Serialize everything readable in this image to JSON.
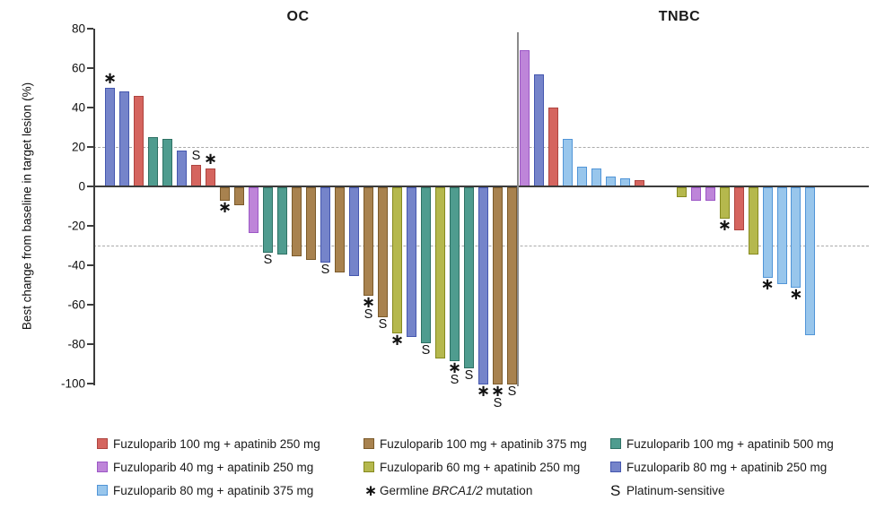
{
  "y_axis": {
    "label": "Best change from baseline in target lesion (%)",
    "ticks": [
      80,
      60,
      40,
      20,
      0,
      -20,
      -40,
      -60,
      -80,
      -100
    ],
    "reference_lines": [
      20,
      -30
    ]
  },
  "groups": {
    "fuzu100_apa250": {
      "label": "Fuzuloparib 100 mg + apatinib 250 mg",
      "fill": "#D5655F",
      "border": "#AE443F"
    },
    "fuzu100_apa375": {
      "label": "Fuzuloparib 100 mg + apatinib 375 mg",
      "fill": "#A8824F",
      "border": "#7B5A2A"
    },
    "fuzu100_apa500": {
      "label": "Fuzuloparib 100 mg + apatinib 500 mg",
      "fill": "#4F9C8F",
      "border": "#2E7164"
    },
    "fuzu40_apa250": {
      "label": "Fuzuloparib 40 mg + apatinib 250 mg",
      "fill": "#BE85D9",
      "border": "#9C57C6"
    },
    "fuzu60_apa250": {
      "label": "Fuzuloparib 60 mg + apatinib 250 mg",
      "fill": "#B5B84D",
      "border": "#868A1F"
    },
    "fuzu80_apa250": {
      "label": "Fuzuloparib 80 mg + apatinib 250 mg",
      "fill": "#7584CA",
      "border": "#4557AF"
    },
    "fuzu80_apa375": {
      "label": "Fuzuloparib 80 mg + apatinib 375 mg",
      "fill": "#98C6EC",
      "border": "#5195D7"
    }
  },
  "chart_data": {
    "type": "bar",
    "ylabel": "Best change from baseline in target lesion (%)",
    "ylim": [
      -100,
      80
    ],
    "reference_lines": [
      20,
      -30
    ],
    "panels": [
      {
        "name": "OC",
        "bars": [
          {
            "value": 50,
            "group": "fuzu80_apa250",
            "marks": [
              "*"
            ]
          },
          {
            "value": 48,
            "group": "fuzu80_apa250",
            "marks": []
          },
          {
            "value": 46,
            "group": "fuzu100_apa250",
            "marks": []
          },
          {
            "value": 25,
            "group": "fuzu100_apa500",
            "marks": []
          },
          {
            "value": 24,
            "group": "fuzu100_apa500",
            "marks": []
          },
          {
            "value": 18,
            "group": "fuzu80_apa250",
            "marks": []
          },
          {
            "value": 11,
            "group": "fuzu100_apa250",
            "marks": [
              "S"
            ]
          },
          {
            "value": 9,
            "group": "fuzu100_apa250",
            "marks": [
              "*"
            ]
          },
          {
            "value": -7,
            "group": "fuzu100_apa375",
            "marks": [
              "*"
            ]
          },
          {
            "value": -9,
            "group": "fuzu100_apa375",
            "marks": []
          },
          {
            "value": -23,
            "group": "fuzu40_apa250",
            "marks": []
          },
          {
            "value": -33,
            "group": "fuzu100_apa500",
            "marks": [
              "S"
            ]
          },
          {
            "value": -34,
            "group": "fuzu100_apa500",
            "marks": []
          },
          {
            "value": -35,
            "group": "fuzu100_apa375",
            "marks": []
          },
          {
            "value": -37,
            "group": "fuzu100_apa375",
            "marks": []
          },
          {
            "value": -38,
            "group": "fuzu80_apa250",
            "marks": [
              "S"
            ]
          },
          {
            "value": -43,
            "group": "fuzu100_apa375",
            "marks": []
          },
          {
            "value": -45,
            "group": "fuzu80_apa250",
            "marks": []
          },
          {
            "value": -55,
            "group": "fuzu100_apa375",
            "marks": [
              "*",
              "S"
            ]
          },
          {
            "value": -66,
            "group": "fuzu100_apa375",
            "marks": [
              "S"
            ]
          },
          {
            "value": -74,
            "group": "fuzu60_apa250",
            "marks": [
              "*"
            ]
          },
          {
            "value": -76,
            "group": "fuzu80_apa250",
            "marks": []
          },
          {
            "value": -79,
            "group": "fuzu100_apa500",
            "marks": [
              "S"
            ]
          },
          {
            "value": -87,
            "group": "fuzu60_apa250",
            "marks": []
          },
          {
            "value": -88,
            "group": "fuzu100_apa500",
            "marks": [
              "*",
              "S"
            ]
          },
          {
            "value": -92,
            "group": "fuzu100_apa500",
            "marks": [
              "S"
            ]
          },
          {
            "value": -100,
            "group": "fuzu80_apa250",
            "marks": [
              "*"
            ]
          },
          {
            "value": -100,
            "group": "fuzu100_apa375",
            "marks": [
              "*",
              "S"
            ]
          },
          {
            "value": -100,
            "group": "fuzu100_apa375",
            "marks": [
              "S"
            ]
          }
        ]
      },
      {
        "name": "TNBC",
        "gap_after_index": 8,
        "gap_slots": 2,
        "bars": [
          {
            "value": 69,
            "group": "fuzu40_apa250",
            "marks": []
          },
          {
            "value": 57,
            "group": "fuzu80_apa250",
            "marks": []
          },
          {
            "value": 40,
            "group": "fuzu100_apa250",
            "marks": []
          },
          {
            "value": 24,
            "group": "fuzu80_apa375",
            "marks": []
          },
          {
            "value": 10,
            "group": "fuzu80_apa375",
            "marks": []
          },
          {
            "value": 9,
            "group": "fuzu80_apa375",
            "marks": []
          },
          {
            "value": 5,
            "group": "fuzu80_apa375",
            "marks": []
          },
          {
            "value": 4,
            "group": "fuzu80_apa375",
            "marks": []
          },
          {
            "value": 3,
            "group": "fuzu100_apa250",
            "marks": []
          },
          {
            "value": -5,
            "group": "fuzu60_apa250",
            "marks": []
          },
          {
            "value": -7,
            "group": "fuzu40_apa250",
            "marks": []
          },
          {
            "value": -7,
            "group": "fuzu40_apa250",
            "marks": []
          },
          {
            "value": -16,
            "group": "fuzu60_apa250",
            "marks": [
              "*"
            ]
          },
          {
            "value": -22,
            "group": "fuzu100_apa250",
            "marks": []
          },
          {
            "value": -34,
            "group": "fuzu60_apa250",
            "marks": []
          },
          {
            "value": -46,
            "group": "fuzu80_apa375",
            "marks": [
              "*"
            ]
          },
          {
            "value": -49,
            "group": "fuzu80_apa375",
            "marks": []
          },
          {
            "value": -51,
            "group": "fuzu80_apa375",
            "marks": [
              "*"
            ]
          },
          {
            "value": -75,
            "group": "fuzu80_apa375",
            "marks": []
          }
        ]
      }
    ]
  },
  "legend": {
    "columns": [
      [
        "fuzu100_apa250",
        "fuzu40_apa250",
        "fuzu80_apa375"
      ],
      [
        "fuzu100_apa375",
        "fuzu60_apa250",
        {
          "note": "brca"
        }
      ],
      [
        "fuzu100_apa500",
        "fuzu80_apa250",
        {
          "note": "platinum"
        }
      ]
    ],
    "notes": {
      "brca": {
        "symbol": "*",
        "text_pre": "Germline ",
        "text_italic": "BRCA1/2",
        "text_post": " mutation"
      },
      "platinum": {
        "symbol": "S",
        "text": "Platinum-sensitive"
      }
    }
  }
}
